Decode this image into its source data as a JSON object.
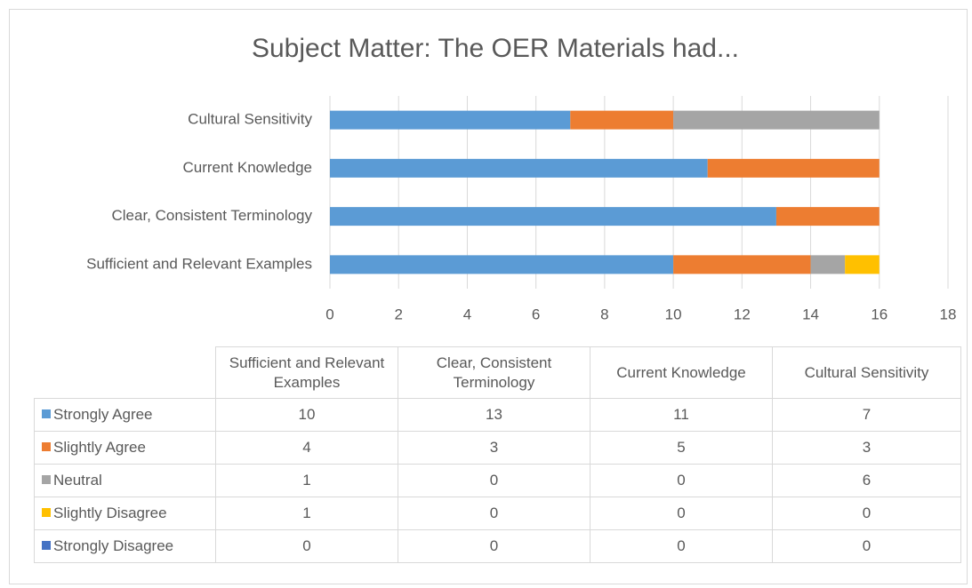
{
  "chart_data": {
    "type": "stacked_bar_horizontal",
    "title": "Subject Matter: The OER Materials had...",
    "categories": [
      "Sufficient and Relevant Examples",
      "Clear, Consistent Terminology",
      "Current Knowledge",
      "Cultural Sensitivity"
    ],
    "series": [
      {
        "name": "Strongly Agree",
        "color": "#5b9bd5",
        "values": [
          10,
          13,
          11,
          7
        ]
      },
      {
        "name": "Slightly Agree",
        "color": "#ed7d31",
        "values": [
          4,
          3,
          5,
          3
        ]
      },
      {
        "name": "Neutral",
        "color": "#a5a5a5",
        "values": [
          1,
          0,
          0,
          6
        ]
      },
      {
        "name": "Slightly Disagree",
        "color": "#ffc000",
        "values": [
          1,
          0,
          0,
          0
        ]
      },
      {
        "name": "Strongly Disagree",
        "color": "#4472c4",
        "values": [
          0,
          0,
          0,
          0
        ]
      }
    ],
    "xlim": [
      0,
      18
    ],
    "xticks": [
      0,
      2,
      4,
      6,
      8,
      10,
      12,
      14,
      16,
      18
    ],
    "grid": true,
    "data_table": true
  }
}
